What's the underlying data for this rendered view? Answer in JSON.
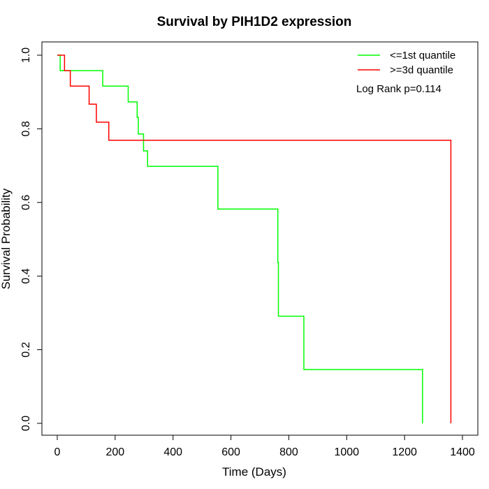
{
  "chart_data": {
    "type": "line",
    "title": "Survival by PIH1D2 expression",
    "xlabel": "Time (Days)",
    "ylabel": "Survival Probability",
    "xlim": [
      0,
      1400
    ],
    "ylim": [
      0,
      1
    ],
    "x_ticks": [
      "0",
      "200",
      "400",
      "600",
      "800",
      "1000",
      "1200",
      "1400"
    ],
    "y_ticks": [
      "0.0",
      "0.2",
      "0.4",
      "0.6",
      "0.8",
      "1.0"
    ],
    "annotation": "Log Rank p=0.114",
    "legend_position": "top-right",
    "series": [
      {
        "name": "<=1st quantile",
        "color": "#00ff00",
        "steps": [
          [
            0,
            1.0
          ],
          [
            10,
            0.958
          ],
          [
            157,
            0.916
          ],
          [
            245,
            0.873
          ],
          [
            276,
            0.831
          ],
          [
            280,
            0.786
          ],
          [
            298,
            0.74
          ],
          [
            312,
            0.698
          ],
          [
            555,
            0.582
          ],
          [
            762,
            0.437
          ],
          [
            764,
            0.291
          ],
          [
            852,
            0.146
          ],
          [
            1262,
            0.146
          ],
          [
            1262,
            0.0
          ]
        ]
      },
      {
        "name": ">=3d quantile",
        "color": "#ff0000",
        "steps": [
          [
            0,
            1.0
          ],
          [
            25,
            0.958
          ],
          [
            45,
            0.916
          ],
          [
            110,
            0.867
          ],
          [
            135,
            0.818
          ],
          [
            178,
            0.769
          ],
          [
            1360,
            0.769
          ],
          [
            1360,
            0.0
          ]
        ]
      }
    ]
  }
}
